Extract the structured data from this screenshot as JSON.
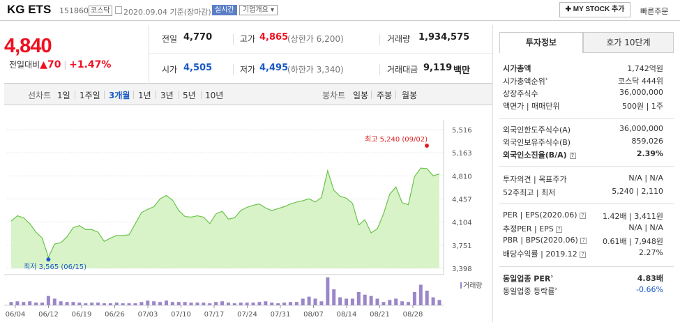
{
  "header": {
    "name": "KG ETS",
    "code": "151860",
    "market": "코스닥",
    "date": "2020.09.04",
    "basis": "기준(장마감)",
    "realtime": "실시간",
    "overview": "기업개요",
    "my_stock": "✚ MY STOCK 추가",
    "fast_order": "빠른주문"
  },
  "price": {
    "current": "4,840",
    "change_label": "전일대비",
    "change_arrow": "▲",
    "change": "70",
    "change_pct": "+1.47%"
  },
  "summary": {
    "prev_label": "전일",
    "prev": "4,770",
    "high_label": "고가",
    "high": "4,865",
    "upper_limit": "(상한가 6,200)",
    "volume_label": "거래량",
    "volume": "1,934,575",
    "open_label": "시가",
    "open": "4,505",
    "low_label": "저가",
    "low": "4,495",
    "lower_limit": "(하한가 3,340)",
    "amount_label": "거래대금",
    "amount": "9,119",
    "amount_unit": "백만"
  },
  "toolbar": {
    "line_label": "선차트",
    "p1": "1일",
    "p2": "1주일",
    "p3": "3개월",
    "p4": "1년",
    "p5": "3년",
    "p6": "5년",
    "p7": "10년",
    "candle_label": "봉차트",
    "c1": "일봉",
    "c2": "주봉",
    "c3": "월봉"
  },
  "chart_data": {
    "type": "line",
    "yticks": [
      "5,516",
      "5,163",
      "4,810",
      "4,457",
      "4,104",
      "3,751",
      "3,398"
    ],
    "ylim": [
      3398,
      5516
    ],
    "xticks": [
      "06/04",
      "06/12",
      "06/19",
      "06/26",
      "07/03",
      "07/10",
      "07/17",
      "07/24",
      "07/31",
      "08/07",
      "08/14",
      "08/21",
      "08/28"
    ],
    "high_label": "최고 5,240 (09/02)",
    "low_label": "최저 3,565 (06/15)",
    "volume_label": "거래량",
    "prices": [
      4120,
      4200,
      4170,
      4080,
      3950,
      3860,
      3565,
      3770,
      3790,
      3880,
      4020,
      4050,
      3990,
      3990,
      3950,
      3810,
      3860,
      3900,
      3900,
      3910,
      4080,
      4250,
      4300,
      4340,
      4460,
      4510,
      4440,
      4280,
      4190,
      4180,
      4200,
      4180,
      4080,
      4230,
      4270,
      4150,
      4170,
      4280,
      4330,
      4360,
      4380,
      4320,
      4280,
      4310,
      4340,
      4380,
      4410,
      4430,
      4460,
      4410,
      4480,
      4890,
      4590,
      4500,
      4470,
      4390,
      4060,
      4140,
      3940,
      4000,
      4230,
      4530,
      4640,
      4400,
      4370,
      4800,
      4930,
      4920,
      4810,
      4840
    ],
    "volume": [
      5,
      6,
      5,
      6,
      4,
      4,
      14,
      10,
      6,
      5,
      5,
      4,
      3,
      4,
      4,
      3,
      3,
      4,
      3,
      3,
      3,
      5,
      7,
      6,
      5,
      7,
      5,
      5,
      5,
      4,
      4,
      4,
      3,
      5,
      6,
      4,
      3,
      4,
      4,
      4,
      5,
      6,
      4,
      3,
      4,
      5,
      5,
      10,
      13,
      10,
      6,
      42,
      24,
      12,
      10,
      10,
      20,
      16,
      14,
      10,
      5,
      8,
      10,
      6,
      5,
      20,
      31,
      22,
      12,
      8
    ],
    "vol_max": 42
  },
  "panel": {
    "tab_info": "투자정보",
    "tab_quote": "호가 10단계",
    "market_cap_label": "시가총액",
    "market_cap": "1,742억원",
    "cap_rank_label": "시가총액순위",
    "cap_rank": "코스닥 444위",
    "shares_label": "상장주식수",
    "shares": "36,000,000",
    "face_label": "액면가",
    "unit_label": "매매단위",
    "face": "500원",
    "unit": "1주",
    "foreign_limit_label": "외국인한도주식수(A)",
    "foreign_limit": "36,000,000",
    "foreign_hold_label": "외국인보유주식수(B)",
    "foreign_hold": "859,026",
    "foreign_rate_label": "외국인소진율(B/A)",
    "foreign_rate": "2.39%",
    "opinion_label": "투자의견",
    "target_label": "목표주가",
    "opinion": "N/A",
    "target": "N/A",
    "w52_label": "52주최고",
    "w52_low_label": "최저",
    "w52_high": "5,240",
    "w52_low": "2,110",
    "per_label": "PER",
    "eps_label": "EPS(2020.06)",
    "per": "1.42배",
    "eps": "3,411원",
    "est_per_label": "추정PER",
    "est_eps_label": "EPS",
    "est_per": "N/A",
    "est_eps": "N/A",
    "pbr_label": "PBR",
    "bps_label": "BPS(2020.06)",
    "pbr": "0.61배",
    "bps": "7,948원",
    "div_label": "배당수익률",
    "div_year": "2019.12",
    "div": "2.27%",
    "ind_per_label": "동일업종 PER",
    "ind_per": "4.83배",
    "ind_rate_label": "동일업종 등락률",
    "ind_rate": "-0.66%",
    "blue": "#1a5bc4",
    "red": "#e12222"
  }
}
